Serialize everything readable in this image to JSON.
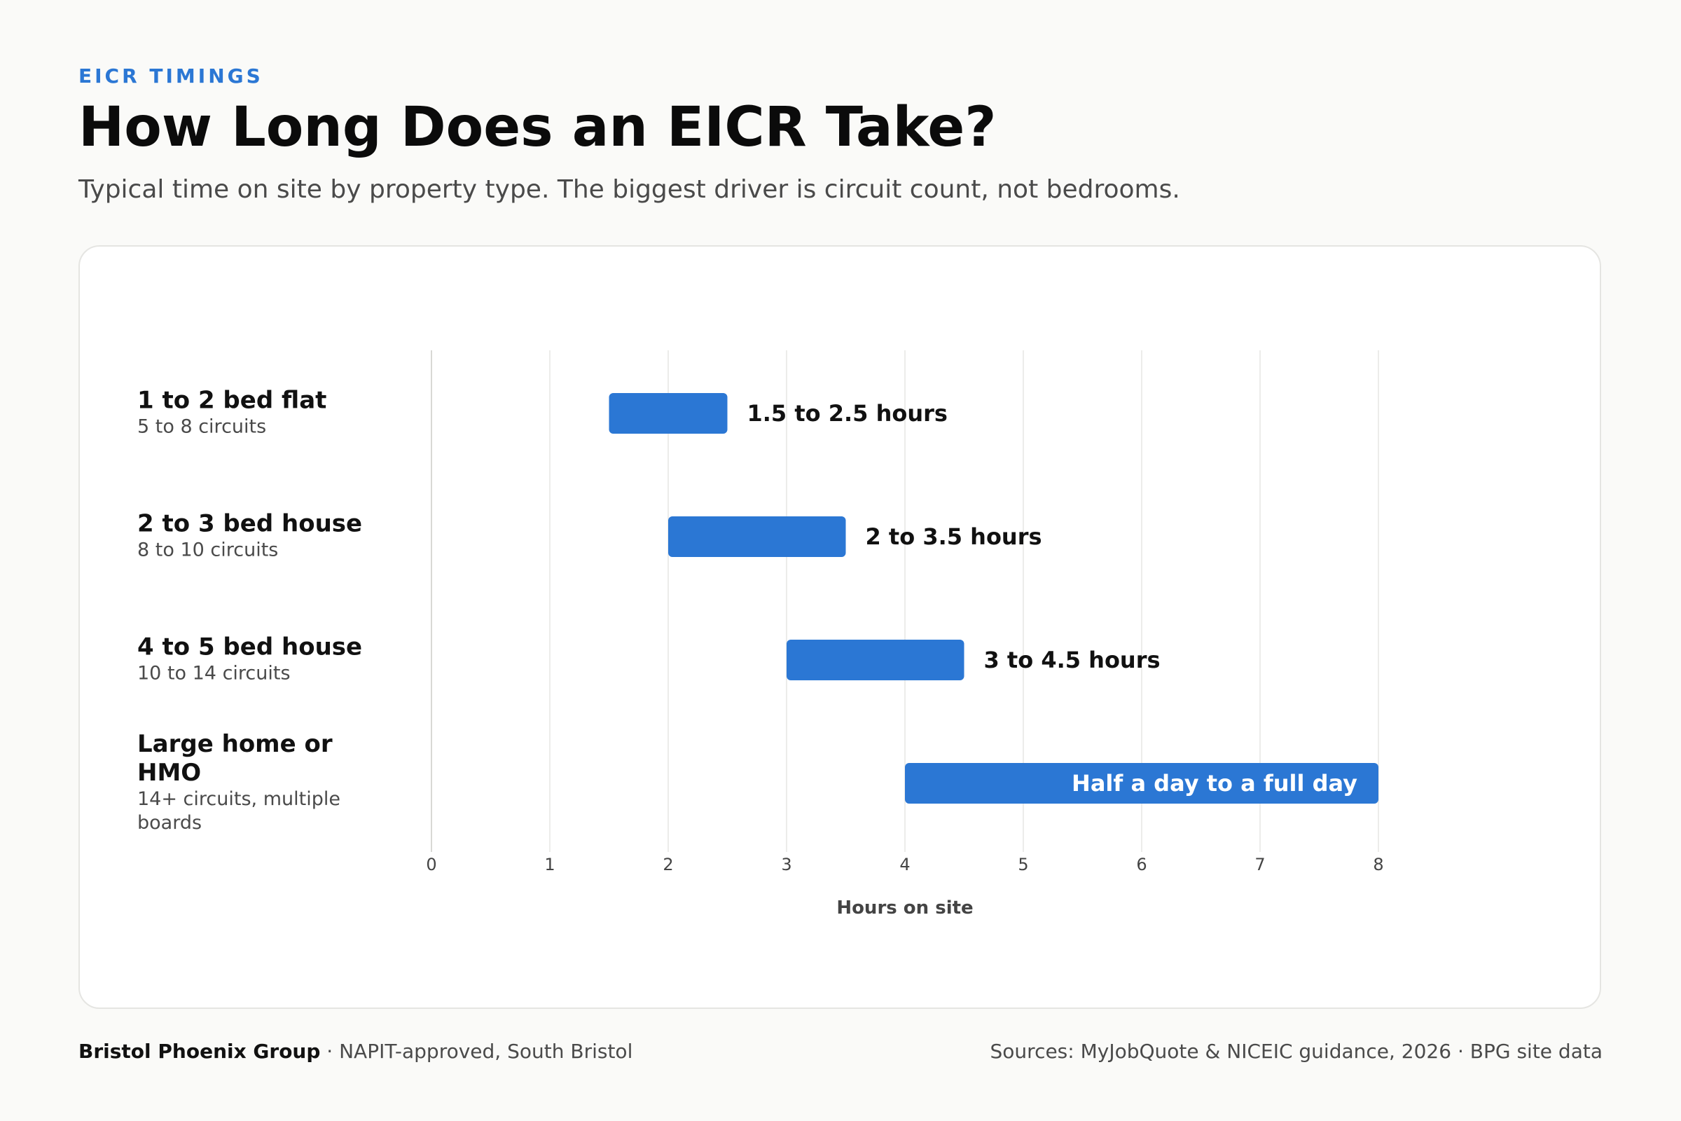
{
  "header": {
    "eyebrow": "EICR TIMINGS",
    "title": "How Long Does an EICR Take?",
    "subtitle": "Typical time on site by property type. The biggest driver is circuit count, not bedrooms."
  },
  "footer": {
    "brand": "Bristol Phoenix Group",
    "brand_suffix": " · NAPIT-approved, South Bristol",
    "sources": "Sources: MyJobQuote & NICEIC guidance, 2026 · BPG site data"
  },
  "colors": {
    "accent": "#2b77d4",
    "grid": "#ececea",
    "axis": "#d8d8d5"
  },
  "chart_data": {
    "type": "bar",
    "orientation": "horizontal",
    "subtype": "range",
    "xlabel": "Hours on site",
    "xlim": [
      0,
      8
    ],
    "xticks": [
      0,
      1,
      2,
      3,
      4,
      5,
      6,
      7,
      8
    ],
    "grid": true,
    "categories": [
      {
        "label": "1 to 2 bed flat",
        "sublabel": "5 to 8 circuits",
        "start": 1.5,
        "end": 2.5,
        "value_label": "1.5 to 2.5 hours",
        "label_inside": false
      },
      {
        "label": "2 to 3 bed house",
        "sublabel": "8 to 10 circuits",
        "start": 2,
        "end": 3.5,
        "value_label": "2 to 3.5 hours",
        "label_inside": false
      },
      {
        "label": "4 to 5 bed house",
        "sublabel": "10 to 14 circuits",
        "start": 3,
        "end": 4.5,
        "value_label": "3 to 4.5 hours",
        "label_inside": false
      },
      {
        "label": "Large home or HMO",
        "sublabel": "14+ circuits, multiple boards",
        "start": 4,
        "end": 8,
        "value_label": "Half a day to a full day",
        "label_inside": true
      }
    ]
  }
}
